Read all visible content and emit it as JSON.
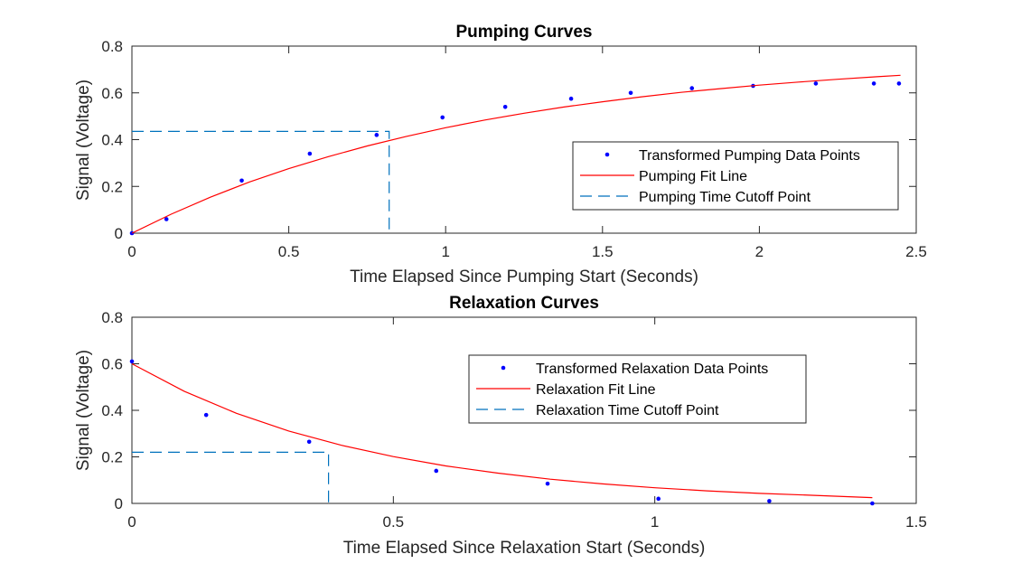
{
  "chart_data": [
    {
      "type": "scatter",
      "title": "Pumping Curves",
      "xlabel": "Time Elapsed Since Pumping Start (Seconds)",
      "ylabel": "Signal (Voltage)",
      "xlim": [
        0,
        2.5
      ],
      "ylim": [
        0,
        0.8
      ],
      "xticks": [
        0,
        0.5,
        1,
        1.5,
        2,
        2.5
      ],
      "xtick_labels": [
        "0",
        "0.5",
        "1",
        "1.5",
        "2",
        "2.5"
      ],
      "yticks": [
        0,
        0.2,
        0.4,
        0.6,
        0.8
      ],
      "ytick_labels": [
        "0",
        "0.2",
        "0.4",
        "0.6",
        "0.8"
      ],
      "grid": false,
      "legend_position": "center-right",
      "series": [
        {
          "name": "Transformed Pumping Data Points",
          "kind": "markers",
          "color": "#0000ff",
          "x": [
            0,
            0.11,
            0.35,
            0.567,
            0.78,
            0.99,
            1.19,
            1.4,
            1.59,
            1.785,
            1.98,
            2.18,
            2.365,
            2.445
          ],
          "y": [
            0,
            0.06,
            0.225,
            0.34,
            0.42,
            0.495,
            0.54,
            0.575,
            0.6,
            0.62,
            0.63,
            0.64,
            0.64,
            0.64
          ]
        },
        {
          "name": "Pumping Fit Line",
          "kind": "line",
          "color": "#ff0000",
          "x": [
            0,
            0.125,
            0.25,
            0.375,
            0.5,
            0.625,
            0.75,
            0.875,
            1.0,
            1.125,
            1.25,
            1.375,
            1.5,
            1.625,
            1.75,
            1.875,
            2.0,
            2.125,
            2.25,
            2.375,
            2.45
          ],
          "y": [
            0,
            0.081,
            0.154,
            0.219,
            0.276,
            0.327,
            0.373,
            0.414,
            0.451,
            0.484,
            0.513,
            0.539,
            0.562,
            0.583,
            0.602,
            0.618,
            0.633,
            0.646,
            0.658,
            0.669,
            0.675
          ]
        },
        {
          "name": "Pumping Time Cutoff Point",
          "kind": "dashed-line",
          "color": "#0072bd",
          "x": [
            0,
            0.82,
            0.82
          ],
          "y": [
            0.435,
            0.435,
            0
          ]
        }
      ]
    },
    {
      "type": "scatter",
      "title": "Relaxation Curves",
      "xlabel": "Time Elapsed Since Relaxation Start (Seconds)",
      "ylabel": "Signal (Voltage)",
      "xlim": [
        0,
        1.5
      ],
      "ylim": [
        0,
        0.8
      ],
      "xticks": [
        0,
        0.5,
        1,
        1.5
      ],
      "xtick_labels": [
        "0",
        "0.5",
        "1",
        "1.5"
      ],
      "yticks": [
        0,
        0.2,
        0.4,
        0.6,
        0.8
      ],
      "ytick_labels": [
        "0",
        "0.2",
        "0.4",
        "0.6",
        "0.8"
      ],
      "grid": false,
      "legend_position": "top-right",
      "series": [
        {
          "name": "Transformed Relaxation Data Points",
          "kind": "markers",
          "color": "#0000ff",
          "x": [
            0,
            0.142,
            0.339,
            0.582,
            0.795,
            1.007,
            1.219,
            1.416
          ],
          "y": [
            0.61,
            0.38,
            0.265,
            0.14,
            0.085,
            0.02,
            0.01,
            0
          ]
        },
        {
          "name": "Relaxation Fit Line",
          "kind": "line",
          "color": "#ff0000",
          "x": [
            0,
            0.1,
            0.2,
            0.3,
            0.4,
            0.5,
            0.6,
            0.7,
            0.8,
            0.9,
            1.0,
            1.1,
            1.2,
            1.3,
            1.416
          ],
          "y": [
            0.6,
            0.482,
            0.387,
            0.311,
            0.25,
            0.201,
            0.161,
            0.13,
            0.104,
            0.084,
            0.067,
            0.054,
            0.043,
            0.035,
            0.025
          ]
        },
        {
          "name": "Relaxation Time Cutoff Point",
          "kind": "dashed-line",
          "color": "#0072bd",
          "x": [
            0,
            0.376,
            0.376
          ],
          "y": [
            0.22,
            0.22,
            0
          ]
        }
      ]
    }
  ]
}
